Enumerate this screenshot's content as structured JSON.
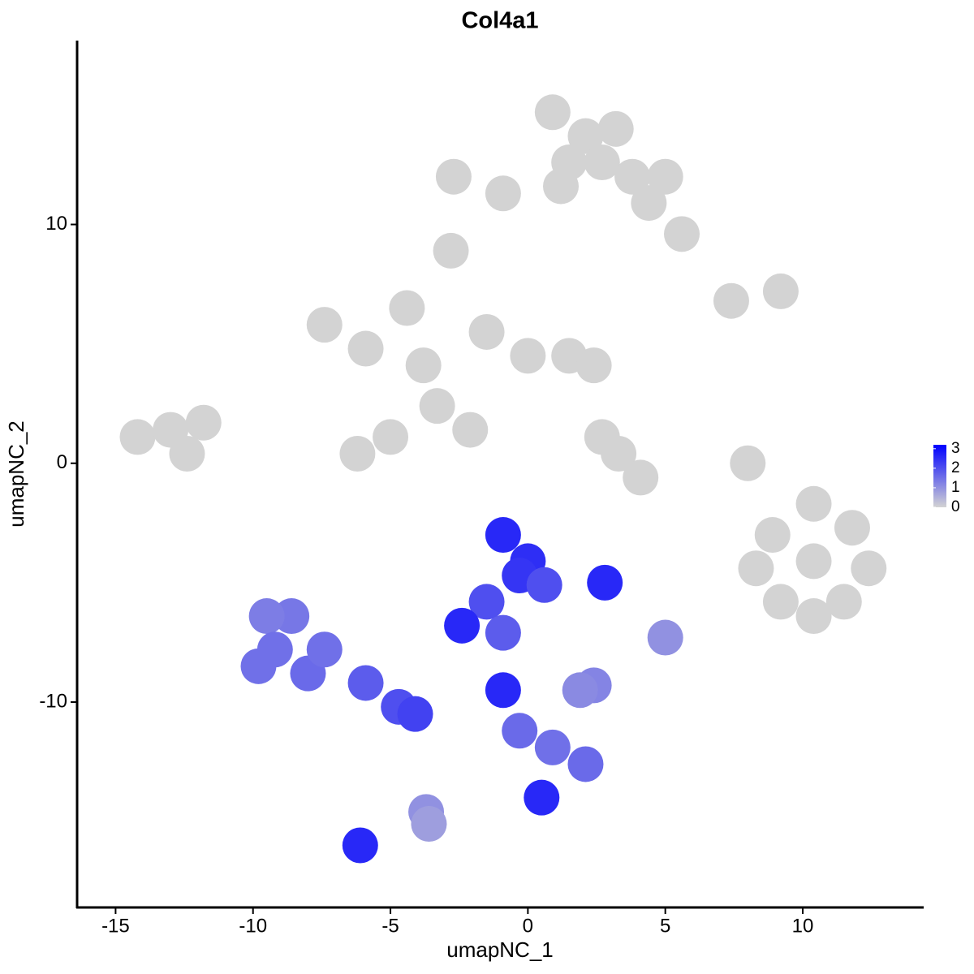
{
  "chart_data": {
    "type": "scatter",
    "title": "Col4a1",
    "xlabel": "umapNC_1",
    "ylabel": "umapNC_2",
    "xlim": [
      -16.4,
      14.4
    ],
    "ylim": [
      -18.6,
      17.7
    ],
    "xticks": [
      -15,
      -10,
      -5,
      0,
      5,
      10
    ],
    "yticks": [
      -10,
      0,
      10
    ],
    "color_low": "#d3d3d3",
    "color_high": "#0000ff",
    "clim": [
      0,
      3.2
    ],
    "cticks": [
      0,
      1,
      2,
      3
    ],
    "x": [
      0.9,
      2.1,
      3.2,
      1.5,
      2.7,
      1.2,
      3.8,
      5.0,
      -2.7,
      -0.9,
      4.4,
      5.6,
      -2.8,
      -14.2,
      -13.0,
      -11.8,
      -12.4,
      -7.4,
      -5.9,
      -4.4,
      -3.8,
      -5.0,
      -6.2,
      -3.3,
      -1.5,
      0.0,
      1.5,
      2.4,
      -2.1,
      3.3,
      4.1,
      2.7,
      7.4,
      9.2,
      8.0,
      10.4,
      8.9,
      11.8,
      9.2,
      11.5,
      10.4,
      10.4,
      8.3,
      12.4,
      -9.8,
      -8.6,
      -8.0,
      -9.5,
      -7.4,
      -9.2,
      -5.9,
      -4.7,
      -4.1,
      -3.7,
      -3.6,
      -6.1,
      -0.9,
      0.0,
      -0.3,
      0.6,
      -1.5,
      -2.4,
      -0.9,
      2.8,
      5.0,
      2.4,
      1.9,
      -0.9,
      -0.3,
      0.9,
      2.1,
      0.5
    ],
    "y": [
      14.7,
      13.7,
      14.0,
      12.6,
      12.6,
      11.6,
      12.0,
      12.0,
      12.0,
      11.3,
      10.9,
      9.6,
      8.9,
      1.1,
      1.4,
      1.7,
      0.4,
      5.8,
      4.8,
      6.5,
      4.1,
      1.1,
      0.4,
      2.4,
      5.5,
      4.5,
      4.5,
      4.1,
      1.4,
      0.4,
      -0.6,
      1.1,
      6.8,
      7.2,
      0.0,
      -4.1,
      -3.0,
      -2.7,
      -5.8,
      -5.8,
      -1.7,
      -6.4,
      -4.4,
      -4.4,
      -8.5,
      -6.4,
      -8.8,
      -6.4,
      -7.8,
      -7.8,
      -9.2,
      -10.2,
      -10.5,
      -14.6,
      -15.1,
      -16.0,
      -3.0,
      -4.1,
      -4.7,
      -5.1,
      -5.8,
      -6.8,
      -7.1,
      -5.0,
      -7.3,
      -9.3,
      -9.5,
      -9.5,
      -11.2,
      -11.9,
      -12.6,
      -14.0
    ],
    "values": [
      0,
      0,
      0,
      0,
      0,
      0,
      0,
      0,
      0,
      0,
      0,
      0,
      0,
      0,
      0,
      0,
      0,
      0,
      0,
      0,
      0,
      0,
      0,
      0,
      0,
      0,
      0,
      0,
      0,
      0,
      0,
      0,
      0,
      0,
      0,
      0,
      0,
      0,
      0,
      0,
      0,
      0,
      0,
      0,
      1.5,
      1.4,
      1.6,
      1.3,
      1.5,
      1.5,
      1.8,
      2.0,
      2.2,
      1.0,
      0.8,
      2.6,
      2.6,
      2.5,
      2.4,
      2.0,
      2.0,
      2.6,
      1.8,
      2.6,
      1.0,
      1.2,
      1.1,
      2.6,
      1.6,
      1.5,
      1.6,
      2.6
    ]
  }
}
